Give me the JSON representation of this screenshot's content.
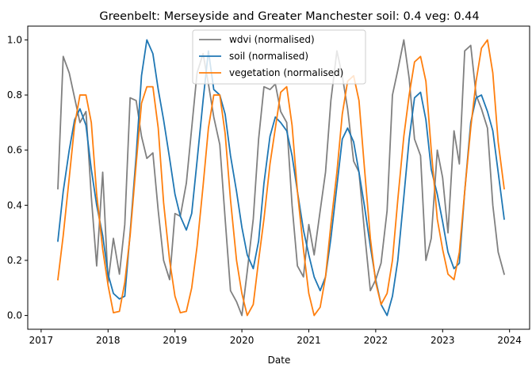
{
  "chart_data": {
    "type": "line",
    "title": "Greenbelt: Merseyside and Greater Manchester soil: 0.4    veg: 0.44",
    "xlabel": "Date",
    "ylabel": "",
    "xlim": [
      2016.8,
      2024.3
    ],
    "ylim": [
      -0.05,
      1.05
    ],
    "xticks": [
      2017,
      2018,
      2019,
      2020,
      2021,
      2022,
      2023,
      2024
    ],
    "xtick_labels": [
      "2017",
      "2018",
      "2019",
      "2020",
      "2021",
      "2022",
      "2023",
      "2024"
    ],
    "yticks": [
      0.0,
      0.2,
      0.4,
      0.6,
      0.8,
      1.0
    ],
    "ytick_labels": [
      "0.0",
      "0.2",
      "0.4",
      "0.6",
      "0.8",
      "1.0"
    ],
    "legend_position": "top-center",
    "grid": false,
    "series": [
      {
        "name": "wdvi (normalised)",
        "color": "#808080",
        "points": [
          [
            2017.25,
            0.46
          ],
          [
            2017.33,
            0.94
          ],
          [
            2017.42,
            0.88
          ],
          [
            2017.5,
            0.79
          ],
          [
            2017.58,
            0.7
          ],
          [
            2017.67,
            0.74
          ],
          [
            2017.75,
            0.43
          ],
          [
            2017.83,
            0.18
          ],
          [
            2017.92,
            0.52
          ],
          [
            2018.0,
            0.12
          ],
          [
            2018.08,
            0.28
          ],
          [
            2018.17,
            0.15
          ],
          [
            2018.25,
            0.33
          ],
          [
            2018.33,
            0.79
          ],
          [
            2018.42,
            0.78
          ],
          [
            2018.5,
            0.65
          ],
          [
            2018.58,
            0.57
          ],
          [
            2018.67,
            0.59
          ],
          [
            2018.75,
            0.38
          ],
          [
            2018.83,
            0.2
          ],
          [
            2018.92,
            0.13
          ],
          [
            2019.0,
            0.37
          ],
          [
            2019.08,
            0.36
          ],
          [
            2019.17,
            0.48
          ],
          [
            2019.25,
            0.68
          ],
          [
            2019.33,
            0.88
          ],
          [
            2019.42,
            0.95
          ],
          [
            2019.5,
            0.84
          ],
          [
            2019.58,
            0.72
          ],
          [
            2019.67,
            0.62
          ],
          [
            2019.75,
            0.35
          ],
          [
            2019.83,
            0.09
          ],
          [
            2019.92,
            0.05
          ],
          [
            2020.0,
            0.0
          ],
          [
            2020.08,
            0.16
          ],
          [
            2020.17,
            0.35
          ],
          [
            2020.25,
            0.64
          ],
          [
            2020.33,
            0.83
          ],
          [
            2020.42,
            0.82
          ],
          [
            2020.5,
            0.84
          ],
          [
            2020.58,
            0.74
          ],
          [
            2020.67,
            0.7
          ],
          [
            2020.75,
            0.4
          ],
          [
            2020.83,
            0.18
          ],
          [
            2020.92,
            0.14
          ],
          [
            2021.0,
            0.33
          ],
          [
            2021.08,
            0.22
          ],
          [
            2021.17,
            0.38
          ],
          [
            2021.25,
            0.52
          ],
          [
            2021.33,
            0.78
          ],
          [
            2021.42,
            0.96
          ],
          [
            2021.5,
            0.87
          ],
          [
            2021.58,
            0.75
          ],
          [
            2021.67,
            0.56
          ],
          [
            2021.75,
            0.52
          ],
          [
            2021.83,
            0.31
          ],
          [
            2021.92,
            0.09
          ],
          [
            2022.0,
            0.13
          ],
          [
            2022.08,
            0.19
          ],
          [
            2022.17,
            0.38
          ],
          [
            2022.25,
            0.8
          ],
          [
            2022.33,
            0.89
          ],
          [
            2022.42,
            1.0
          ],
          [
            2022.5,
            0.86
          ],
          [
            2022.58,
            0.64
          ],
          [
            2022.67,
            0.58
          ],
          [
            2022.75,
            0.2
          ],
          [
            2022.83,
            0.28
          ],
          [
            2022.92,
            0.6
          ],
          [
            2023.0,
            0.5
          ],
          [
            2023.08,
            0.3
          ],
          [
            2023.17,
            0.67
          ],
          [
            2023.25,
            0.55
          ],
          [
            2023.33,
            0.96
          ],
          [
            2023.42,
            0.98
          ],
          [
            2023.5,
            0.8
          ],
          [
            2023.58,
            0.75
          ],
          [
            2023.67,
            0.68
          ],
          [
            2023.75,
            0.4
          ],
          [
            2023.83,
            0.23
          ],
          [
            2023.92,
            0.15
          ]
        ]
      },
      {
        "name": "soil (normalised)",
        "color": "#1f77b4",
        "points": [
          [
            2017.25,
            0.27
          ],
          [
            2017.33,
            0.45
          ],
          [
            2017.42,
            0.6
          ],
          [
            2017.5,
            0.71
          ],
          [
            2017.58,
            0.75
          ],
          [
            2017.67,
            0.69
          ],
          [
            2017.75,
            0.53
          ],
          [
            2017.83,
            0.4
          ],
          [
            2017.92,
            0.29
          ],
          [
            2018.0,
            0.15
          ],
          [
            2018.08,
            0.08
          ],
          [
            2018.17,
            0.06
          ],
          [
            2018.25,
            0.07
          ],
          [
            2018.33,
            0.3
          ],
          [
            2018.42,
            0.58
          ],
          [
            2018.5,
            0.87
          ],
          [
            2018.58,
            1.0
          ],
          [
            2018.67,
            0.95
          ],
          [
            2018.75,
            0.82
          ],
          [
            2018.83,
            0.71
          ],
          [
            2018.92,
            0.57
          ],
          [
            2019.0,
            0.44
          ],
          [
            2019.08,
            0.36
          ],
          [
            2019.17,
            0.31
          ],
          [
            2019.25,
            0.37
          ],
          [
            2019.33,
            0.56
          ],
          [
            2019.42,
            0.78
          ],
          [
            2019.5,
            0.96
          ],
          [
            2019.58,
            0.82
          ],
          [
            2019.67,
            0.8
          ],
          [
            2019.75,
            0.73
          ],
          [
            2019.83,
            0.58
          ],
          [
            2019.92,
            0.45
          ],
          [
            2020.0,
            0.32
          ],
          [
            2020.08,
            0.22
          ],
          [
            2020.17,
            0.17
          ],
          [
            2020.25,
            0.27
          ],
          [
            2020.33,
            0.48
          ],
          [
            2020.42,
            0.65
          ],
          [
            2020.5,
            0.72
          ],
          [
            2020.58,
            0.7
          ],
          [
            2020.67,
            0.67
          ],
          [
            2020.75,
            0.58
          ],
          [
            2020.83,
            0.45
          ],
          [
            2020.92,
            0.31
          ],
          [
            2021.0,
            0.22
          ],
          [
            2021.08,
            0.14
          ],
          [
            2021.17,
            0.09
          ],
          [
            2021.25,
            0.14
          ],
          [
            2021.33,
            0.28
          ],
          [
            2021.42,
            0.47
          ],
          [
            2021.5,
            0.64
          ],
          [
            2021.58,
            0.68
          ],
          [
            2021.67,
            0.63
          ],
          [
            2021.75,
            0.52
          ],
          [
            2021.83,
            0.4
          ],
          [
            2021.92,
            0.25
          ],
          [
            2022.0,
            0.13
          ],
          [
            2022.08,
            0.04
          ],
          [
            2022.17,
            0.0
          ],
          [
            2022.25,
            0.07
          ],
          [
            2022.33,
            0.2
          ],
          [
            2022.42,
            0.43
          ],
          [
            2022.5,
            0.64
          ],
          [
            2022.58,
            0.79
          ],
          [
            2022.67,
            0.81
          ],
          [
            2022.75,
            0.71
          ],
          [
            2022.83,
            0.53
          ],
          [
            2022.92,
            0.44
          ],
          [
            2023.0,
            0.34
          ],
          [
            2023.08,
            0.23
          ],
          [
            2023.17,
            0.17
          ],
          [
            2023.25,
            0.19
          ],
          [
            2023.33,
            0.45
          ],
          [
            2023.42,
            0.7
          ],
          [
            2023.5,
            0.79
          ],
          [
            2023.58,
            0.8
          ],
          [
            2023.67,
            0.74
          ],
          [
            2023.75,
            0.67
          ],
          [
            2023.83,
            0.52
          ],
          [
            2023.92,
            0.35
          ]
        ]
      },
      {
        "name": "vegetation (normalised)",
        "color": "#ff7f0e",
        "points": [
          [
            2017.25,
            0.13
          ],
          [
            2017.33,
            0.29
          ],
          [
            2017.42,
            0.5
          ],
          [
            2017.5,
            0.69
          ],
          [
            2017.58,
            0.8
          ],
          [
            2017.67,
            0.8
          ],
          [
            2017.75,
            0.7
          ],
          [
            2017.83,
            0.44
          ],
          [
            2017.92,
            0.24
          ],
          [
            2018.0,
            0.11
          ],
          [
            2018.08,
            0.01
          ],
          [
            2018.17,
            0.015
          ],
          [
            2018.25,
            0.12
          ],
          [
            2018.33,
            0.29
          ],
          [
            2018.42,
            0.55
          ],
          [
            2018.5,
            0.77
          ],
          [
            2018.58,
            0.83
          ],
          [
            2018.67,
            0.83
          ],
          [
            2018.75,
            0.68
          ],
          [
            2018.83,
            0.41
          ],
          [
            2018.92,
            0.2
          ],
          [
            2019.0,
            0.07
          ],
          [
            2019.08,
            0.01
          ],
          [
            2019.17,
            0.015
          ],
          [
            2019.25,
            0.1
          ],
          [
            2019.33,
            0.25
          ],
          [
            2019.42,
            0.47
          ],
          [
            2019.5,
            0.68
          ],
          [
            2019.58,
            0.8
          ],
          [
            2019.67,
            0.8
          ],
          [
            2019.75,
            0.66
          ],
          [
            2019.83,
            0.42
          ],
          [
            2019.92,
            0.2
          ],
          [
            2020.0,
            0.08
          ],
          [
            2020.08,
            0.0
          ],
          [
            2020.17,
            0.04
          ],
          [
            2020.25,
            0.2
          ],
          [
            2020.33,
            0.35
          ],
          [
            2020.42,
            0.55
          ],
          [
            2020.5,
            0.68
          ],
          [
            2020.58,
            0.81
          ],
          [
            2020.67,
            0.83
          ],
          [
            2020.75,
            0.69
          ],
          [
            2020.83,
            0.45
          ],
          [
            2020.92,
            0.24
          ],
          [
            2021.0,
            0.08
          ],
          [
            2021.08,
            0.0
          ],
          [
            2021.17,
            0.03
          ],
          [
            2021.25,
            0.14
          ],
          [
            2021.33,
            0.33
          ],
          [
            2021.42,
            0.52
          ],
          [
            2021.5,
            0.73
          ],
          [
            2021.58,
            0.85
          ],
          [
            2021.67,
            0.87
          ],
          [
            2021.75,
            0.78
          ],
          [
            2021.83,
            0.54
          ],
          [
            2021.92,
            0.28
          ],
          [
            2022.0,
            0.12
          ],
          [
            2022.08,
            0.04
          ],
          [
            2022.17,
            0.08
          ],
          [
            2022.25,
            0.2
          ],
          [
            2022.33,
            0.42
          ],
          [
            2022.42,
            0.65
          ],
          [
            2022.5,
            0.8
          ],
          [
            2022.58,
            0.92
          ],
          [
            2022.67,
            0.94
          ],
          [
            2022.75,
            0.85
          ],
          [
            2022.83,
            0.6
          ],
          [
            2022.92,
            0.35
          ],
          [
            2023.0,
            0.24
          ],
          [
            2023.08,
            0.15
          ],
          [
            2023.17,
            0.13
          ],
          [
            2023.25,
            0.23
          ],
          [
            2023.33,
            0.45
          ],
          [
            2023.42,
            0.68
          ],
          [
            2023.5,
            0.85
          ],
          [
            2023.58,
            0.97
          ],
          [
            2023.67,
            1.0
          ],
          [
            2023.75,
            0.88
          ],
          [
            2023.83,
            0.63
          ],
          [
            2023.92,
            0.46
          ]
        ]
      }
    ]
  }
}
